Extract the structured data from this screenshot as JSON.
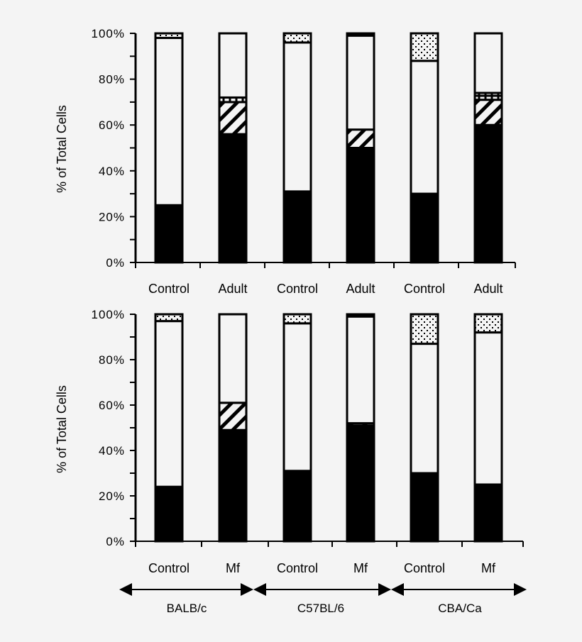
{
  "colors": {
    "background": "#f4f4f4",
    "ink": "#000000",
    "open": "#f4f4f4"
  },
  "chart_data": [
    {
      "type": "bar",
      "stacked": true,
      "ylabel": "% of Total Cells",
      "ylim": [
        0,
        100
      ],
      "yticks": [
        "0%",
        "20%",
        "40%",
        "60%",
        "80%",
        "100%"
      ],
      "categories": [
        "Control",
        "Adult",
        "Control",
        "Adult",
        "Control",
        "Adult"
      ],
      "segment_fills": [
        "solid",
        "hatched",
        "checkered",
        "open",
        "dotted",
        "solid"
      ],
      "series": [
        {
          "fill": "solid",
          "values": [
            25,
            56,
            31,
            50,
            30,
            60
          ]
        },
        {
          "fill": "hatched",
          "values": [
            0,
            14,
            0,
            8,
            0,
            11
          ]
        },
        {
          "fill": "checkered",
          "values": [
            0,
            2,
            0,
            0,
            0,
            3
          ]
        },
        {
          "fill": "open",
          "values": [
            73,
            28,
            65,
            41,
            58,
            26
          ]
        },
        {
          "fill": "dotted",
          "values": [
            2,
            0,
            4,
            0,
            12,
            0
          ]
        },
        {
          "fill": "solid",
          "values": [
            0,
            0,
            0,
            1,
            0,
            0
          ]
        }
      ]
    },
    {
      "type": "bar",
      "stacked": true,
      "ylabel": "% of Total Cells",
      "ylim": [
        0,
        100
      ],
      "yticks": [
        "0%",
        "20%",
        "40%",
        "60%",
        "80%",
        "100%"
      ],
      "categories": [
        "Control",
        "Mf",
        "Control",
        "Mf",
        "Control",
        "Mf"
      ],
      "segment_fills": [
        "solid",
        "hatched",
        "checkered",
        "open",
        "dotted",
        "solid"
      ],
      "series": [
        {
          "fill": "solid",
          "values": [
            24,
            49,
            31,
            51,
            30,
            25
          ]
        },
        {
          "fill": "hatched",
          "values": [
            0,
            12,
            0,
            1,
            0,
            0
          ]
        },
        {
          "fill": "checkered",
          "values": [
            0,
            0,
            0,
            0,
            0,
            0
          ]
        },
        {
          "fill": "open",
          "values": [
            73,
            39,
            65,
            47,
            57,
            67
          ]
        },
        {
          "fill": "dotted",
          "values": [
            3,
            0,
            4,
            0,
            13,
            8
          ]
        },
        {
          "fill": "solid",
          "values": [
            0,
            0,
            0,
            1,
            0,
            0
          ]
        }
      ],
      "groups": [
        "BALB/c",
        "C57BL/6",
        "CBA/Ca"
      ]
    }
  ]
}
